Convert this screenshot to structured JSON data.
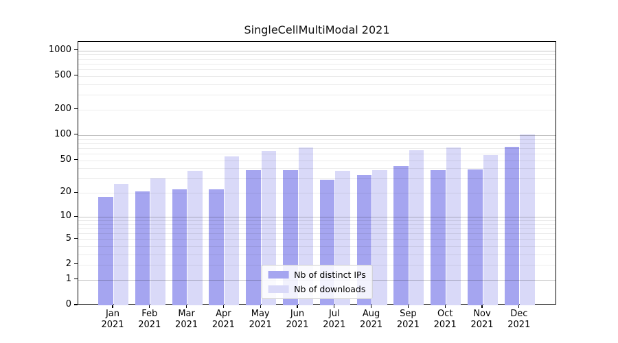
{
  "title": "SingleCellMultiModal 2021",
  "chart_data": {
    "type": "bar",
    "title": "SingleCellMultiModal 2021",
    "categories": [
      "Jan 2021",
      "Feb 2021",
      "Mar 2021",
      "Apr 2021",
      "May 2021",
      "Jun 2021",
      "Jul 2021",
      "Aug 2021",
      "Sep 2021",
      "Oct 2021",
      "Nov 2021",
      "Dec 2021"
    ],
    "series": [
      {
        "name": "Nb of distinct IPs",
        "color": "#a5a5f0",
        "values": [
          18,
          21,
          22,
          22,
          38,
          38,
          29,
          33,
          43,
          38,
          39,
          72
        ]
      },
      {
        "name": "Nb of downloads",
        "color": "#d9d9f8",
        "values": [
          26,
          30,
          37,
          56,
          65,
          71,
          37,
          38,
          66,
          71,
          58,
          102
        ]
      }
    ],
    "xlabel": "",
    "ylabel": "",
    "yscale": "log1p",
    "ylim": [
      0,
      1264
    ],
    "yticks": [
      0,
      1,
      2,
      5,
      10,
      20,
      50,
      100,
      200,
      500,
      1000
    ],
    "major_grid_values": [
      1,
      10,
      100,
      1000
    ],
    "minor_grid_values": [
      2,
      3,
      4,
      5,
      6,
      7,
      8,
      9,
      20,
      30,
      40,
      50,
      60,
      70,
      80,
      90,
      200,
      300,
      400,
      500,
      600,
      700,
      800,
      900
    ],
    "grid": "horizontal, drawn over bars",
    "legend_position": "lower center"
  },
  "colors": {
    "bar_distinct_ips": "#a5a5f0",
    "bar_downloads": "#d9d9f8",
    "spine": "#000000",
    "major_grid": "#c2c2c2",
    "minor_grid": "#ebebeb",
    "background": "#ffffff"
  }
}
